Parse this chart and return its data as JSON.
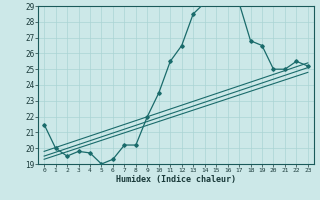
{
  "xlabel": "Humidex (Indice chaleur)",
  "bg_color": "#cce8e8",
  "grid_color": "#aad4d4",
  "line_color": "#1a6b6b",
  "xlim": [
    -0.5,
    23.5
  ],
  "ylim": [
    19,
    29
  ],
  "yticks": [
    19,
    20,
    21,
    22,
    23,
    24,
    25,
    26,
    27,
    28,
    29
  ],
  "xticks": [
    0,
    1,
    2,
    3,
    4,
    5,
    6,
    7,
    8,
    9,
    10,
    11,
    12,
    13,
    14,
    15,
    16,
    17,
    18,
    19,
    20,
    21,
    22,
    23
  ],
  "main_x": [
    0,
    1,
    2,
    3,
    4,
    5,
    6,
    7,
    8,
    9,
    10,
    11,
    12,
    13,
    14,
    15,
    16,
    17,
    18,
    19,
    20,
    21,
    22,
    23
  ],
  "main_y": [
    21.5,
    20.0,
    19.5,
    19.8,
    19.7,
    19.0,
    19.3,
    20.2,
    20.2,
    22.0,
    23.5,
    25.5,
    26.5,
    28.5,
    29.2,
    29.2,
    29.2,
    29.2,
    26.8,
    26.5,
    25.0,
    25.0,
    25.5,
    25.2
  ],
  "line2_x": [
    0,
    23
  ],
  "line2_y": [
    19.8,
    25.4
  ],
  "line3_x": [
    0,
    23
  ],
  "line3_y": [
    19.5,
    25.1
  ],
  "line4_x": [
    0,
    23
  ],
  "line4_y": [
    19.3,
    24.8
  ],
  "xticklabels": [
    "0",
    "1",
    "2",
    "3",
    "4",
    "5",
    "6",
    "7",
    "8",
    "9",
    "10",
    "11",
    "12",
    "13",
    "14",
    "15",
    "16",
    "17",
    "18",
    "19",
    "20",
    "21",
    "22",
    "23"
  ]
}
